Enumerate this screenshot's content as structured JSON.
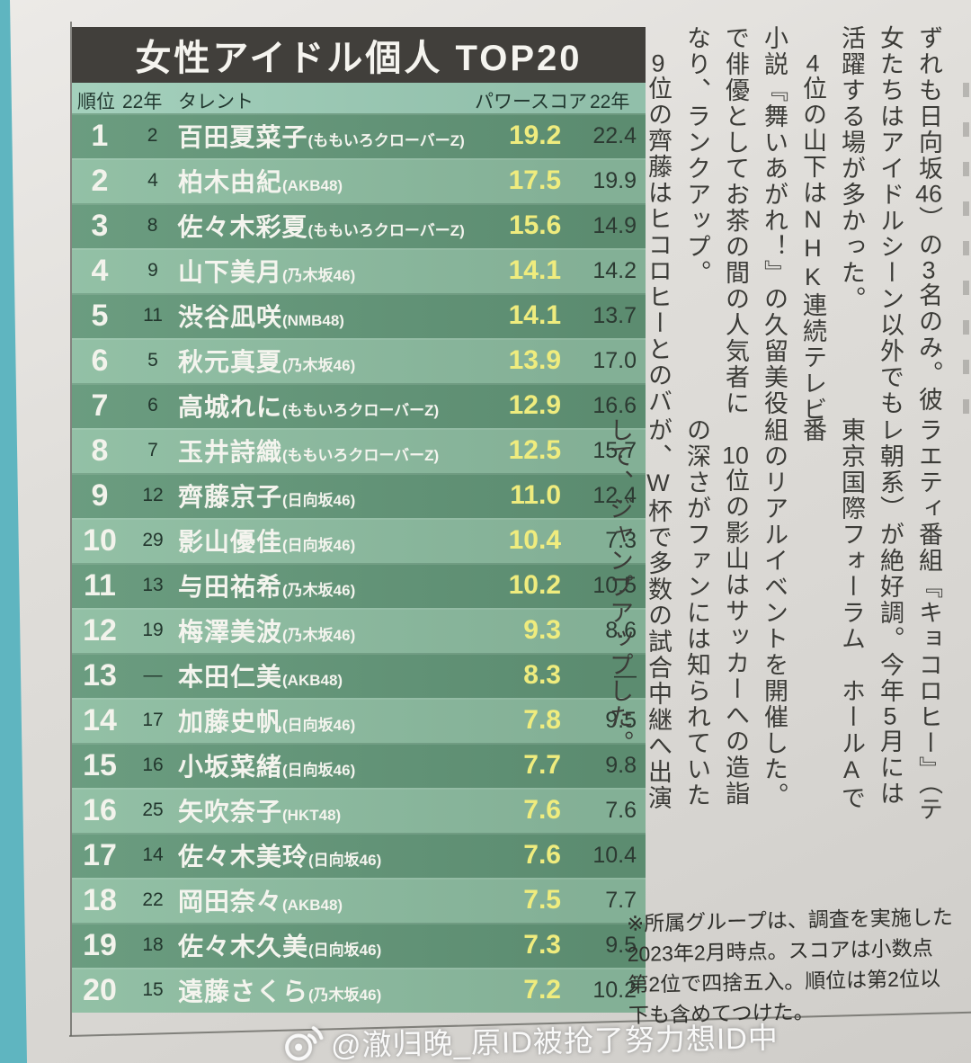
{
  "table": {
    "title": "女性アイドル個人 TOP20",
    "columns": {
      "rank": "順位",
      "prev_rank": "22年",
      "talent": "タレント",
      "score": "パワースコア",
      "prev_score": "22年"
    },
    "rows": [
      {
        "rank": "1",
        "prev_rank": "2",
        "name": "百田夏菜子",
        "group": "ももいろクローバーZ",
        "score": "19.2",
        "prev_score": "22.4"
      },
      {
        "rank": "2",
        "prev_rank": "4",
        "name": "柏木由紀",
        "group": "AKB48",
        "score": "17.5",
        "prev_score": "19.9"
      },
      {
        "rank": "3",
        "prev_rank": "8",
        "name": "佐々木彩夏",
        "group": "ももいろクローバーZ",
        "score": "15.6",
        "prev_score": "14.9"
      },
      {
        "rank": "4",
        "prev_rank": "9",
        "name": "山下美月",
        "group": "乃木坂46",
        "score": "14.1",
        "prev_score": "14.2"
      },
      {
        "rank": "5",
        "prev_rank": "11",
        "name": "渋谷凪咲",
        "group": "NMB48",
        "score": "14.1",
        "prev_score": "13.7"
      },
      {
        "rank": "6",
        "prev_rank": "5",
        "name": "秋元真夏",
        "group": "乃木坂46",
        "score": "13.9",
        "prev_score": "17.0"
      },
      {
        "rank": "7",
        "prev_rank": "6",
        "name": "高城れに",
        "group": "ももいろクローバーZ",
        "score": "12.9",
        "prev_score": "16.6"
      },
      {
        "rank": "8",
        "prev_rank": "7",
        "name": "玉井詩織",
        "group": "ももいろクローバーZ",
        "score": "12.5",
        "prev_score": "15.7"
      },
      {
        "rank": "9",
        "prev_rank": "12",
        "name": "齊藤京子",
        "group": "日向坂46",
        "score": "11.0",
        "prev_score": "12.4"
      },
      {
        "rank": "10",
        "prev_rank": "29",
        "name": "影山優佳",
        "group": "日向坂46",
        "score": "10.4",
        "prev_score": "7.3"
      },
      {
        "rank": "11",
        "prev_rank": "13",
        "name": "与田祐希",
        "group": "乃木坂46",
        "score": "10.2",
        "prev_score": "10.5"
      },
      {
        "rank": "12",
        "prev_rank": "19",
        "name": "梅澤美波",
        "group": "乃木坂46",
        "score": "9.3",
        "prev_score": "8.6"
      },
      {
        "rank": "13",
        "prev_rank": "—",
        "name": "本田仁美",
        "group": "AKB48",
        "score": "8.3",
        "prev_score": "—"
      },
      {
        "rank": "14",
        "prev_rank": "17",
        "name": "加藤史帆",
        "group": "日向坂46",
        "score": "7.8",
        "prev_score": "9.5"
      },
      {
        "rank": "15",
        "prev_rank": "16",
        "name": "小坂菜緒",
        "group": "日向坂46",
        "score": "7.7",
        "prev_score": "9.8"
      },
      {
        "rank": "16",
        "prev_rank": "25",
        "name": "矢吹奈子",
        "group": "HKT48",
        "score": "7.6",
        "prev_score": "7.6"
      },
      {
        "rank": "17",
        "prev_rank": "14",
        "name": "佐々木美玲",
        "group": "日向坂46",
        "score": "7.6",
        "prev_score": "10.4"
      },
      {
        "rank": "18",
        "prev_rank": "22",
        "name": "岡田奈々",
        "group": "AKB48",
        "score": "7.5",
        "prev_score": "7.7"
      },
      {
        "rank": "19",
        "prev_rank": "18",
        "name": "佐々木久美",
        "group": "日向坂46",
        "score": "7.3",
        "prev_score": "9.5"
      },
      {
        "rank": "20",
        "prev_rank": "15",
        "name": "遠藤さくら",
        "group": "乃木坂46",
        "score": "7.2",
        "prev_score": "10.2"
      }
    ]
  },
  "article": {
    "top_columns": [
      "ずれも日向坂46）の3名のみ。彼",
      "女たちはアイドルシーン以外でも",
      "活躍する場が多かった。",
      "　4位の山下はNHK連続テレビ",
      "小説『舞いあがれ！』の久留美役",
      "で俳優としてお茶の間の人気者に",
      "なり、ランクアップ。",
      "　9位の齊藤はヒコロヒーとのバ"
    ],
    "bottom_columns": [
      "ラエティ番組『キョコロヒー』（テ",
      "レ朝系）が絶好調。今年5月には",
      "東京国際フォーラム　ホールAで番",
      "組のリアルイベントを開催した。",
      "　10位の影山はサッカーへの造詣",
      "の深さがファンには知られていた",
      "が、W杯で多数の試合中継へ出演",
      "して、ジャンプアップした。"
    ]
  },
  "footnote": {
    "lines": [
      "※所属グループは、調査を実施した",
      "2023年2月時点。スコアは小数点",
      "第2位で四捨五入。順位は第2位以",
      "下も含めてつけた。"
    ]
  },
  "watermark": {
    "text": "@澈归晚_原ID被抢了努力想ID中"
  },
  "colors": {
    "title_bar_bg": "#413f3b",
    "column_header_bg": "#9acbb5",
    "row_odd_bg": "#639779",
    "row_even_bg": "#8dbda1",
    "score_yellow": "#efec7e",
    "row_text_white": "#f4f4ee",
    "dark_text": "#22362d",
    "page_edge_teal": "#5fb5c0",
    "paper": "#dcdad7"
  }
}
